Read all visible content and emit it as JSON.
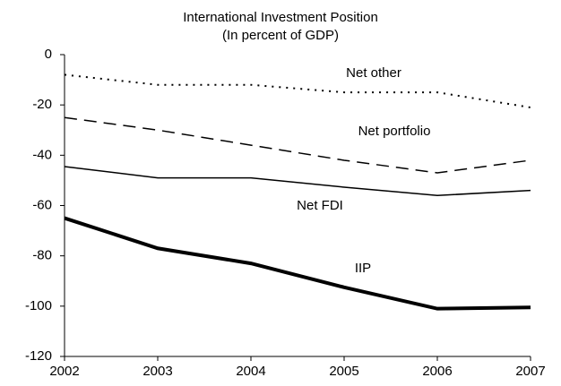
{
  "chart_data": {
    "type": "line",
    "title": "International Investment Position",
    "subtitle": "(In percent of GDP)",
    "x": [
      2002,
      2003,
      2004,
      2005,
      2006,
      2007
    ],
    "xlim": [
      2002,
      2007
    ],
    "xticks": [
      2002,
      2003,
      2004,
      2005,
      2006,
      2007
    ],
    "ylim": [
      -120,
      0
    ],
    "yticks": [
      -120,
      -100,
      -80,
      -60,
      -40,
      -20,
      0
    ],
    "grid": false,
    "series": [
      {
        "name": "Net other",
        "color": "#000000",
        "line_style": "dotted",
        "width": 2,
        "values": [
          -8,
          -12,
          -12,
          -15,
          -15,
          -21
        ]
      },
      {
        "name": "Net portfolio",
        "color": "#000000",
        "line_style": "dashed",
        "width": 1.5,
        "values": [
          -25,
          -30,
          -36,
          -42,
          -47,
          -42
        ]
      },
      {
        "name": "Net FDI",
        "color": "#000000",
        "line_style": "solid",
        "width": 1.5,
        "values": [
          -44.5,
          -49,
          -49,
          -52.7,
          -56,
          -54
        ]
      },
      {
        "name": "IIP",
        "color": "#000000",
        "line_style": "solid",
        "width": 4,
        "values": [
          -65,
          -77,
          -83,
          -92.5,
          -101,
          -100.5
        ]
      }
    ]
  }
}
